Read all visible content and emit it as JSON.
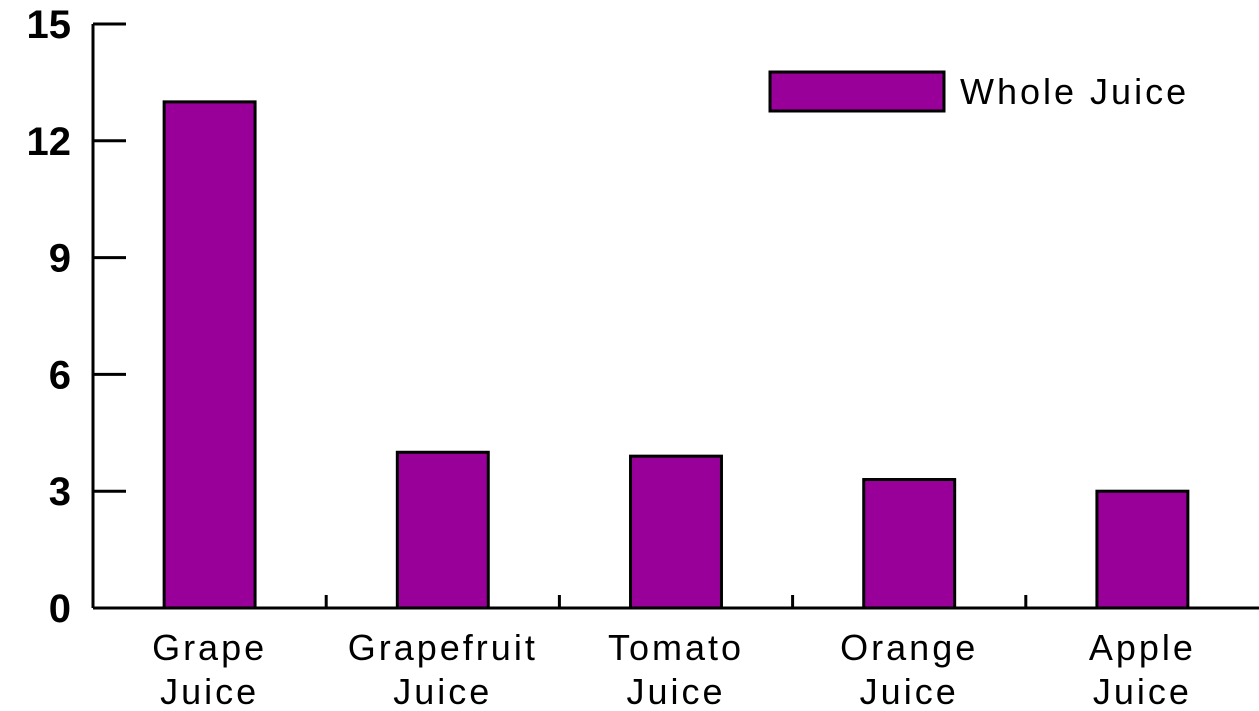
{
  "chart_data": {
    "type": "bar",
    "categories": [
      "Grape Juice",
      "Grapefruit Juice",
      "Tomato Juice",
      "Orange Juice",
      "Apple Juice"
    ],
    "category_lines": [
      [
        "Grape",
        "Juice"
      ],
      [
        "Grapefruit",
        "Juice"
      ],
      [
        "Tomato",
        "Juice"
      ],
      [
        "Orange",
        "Juice"
      ],
      [
        "Apple",
        "Juice"
      ]
    ],
    "series": [
      {
        "name": "Whole Juice",
        "values": [
          13.0,
          4.0,
          3.9,
          3.3,
          3.0
        ],
        "color": "#990099"
      }
    ],
    "ylim": [
      0,
      15
    ],
    "yticks": [
      "0",
      "3",
      "6",
      "9",
      "12",
      "15"
    ],
    "title": "",
    "xlabel": "",
    "ylabel": "",
    "grid": false,
    "legend_position": "top-right"
  }
}
